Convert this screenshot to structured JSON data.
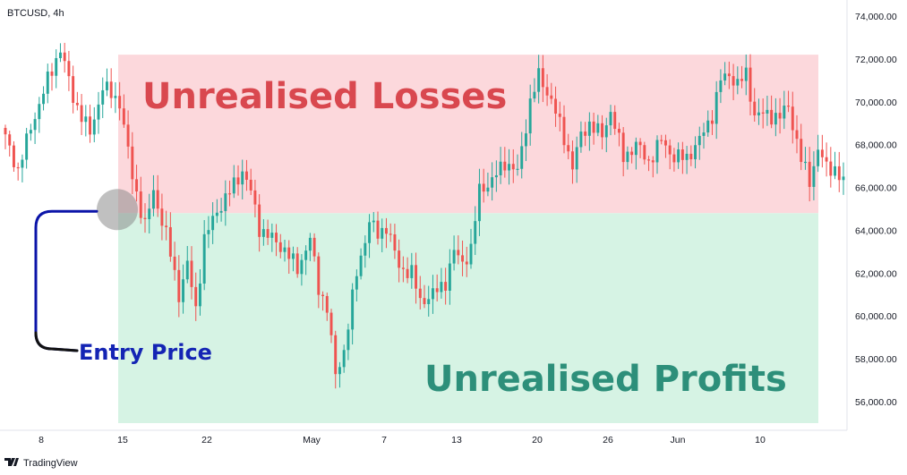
{
  "symbol_label": "BTCUSD, 4h",
  "watermark": "TradingView",
  "colors": {
    "up": "#26a69a",
    "down": "#ef5350",
    "loss_zone": "#fcd8dc",
    "profit_zone": "#d6f3e4",
    "entry_marker": "#8c8c8c",
    "bracket": "#0b14a8"
  },
  "annotations": {
    "losses": "Unrealised Losses",
    "profits": "Unrealised Profits",
    "entry": "Entry Price"
  },
  "chart_data": {
    "type": "candlestick",
    "y_axis": {
      "min": 54500,
      "max": 75000,
      "ticks": [
        "74,000.00",
        "72,000.00",
        "70,000.00",
        "68,000.00",
        "66,000.00",
        "64,000.00",
        "62,000.00",
        "60,000.00",
        "58,000.00",
        "56,000.00"
      ],
      "tick_values": [
        74000,
        72000,
        70000,
        68000,
        66000,
        64000,
        62000,
        60000,
        58000,
        56000
      ]
    },
    "x_axis": {
      "ticks": [
        "8",
        "15",
        "22",
        "May",
        "7",
        "13",
        "20",
        "26",
        "Jun",
        "10"
      ]
    },
    "entry_price": 64800,
    "loss_zone": {
      "from": 64800,
      "to": 72200
    },
    "profit_zone": {
      "from": 55000,
      "to": 64800
    },
    "price_anchors": [
      [
        0,
        68300
      ],
      [
        3,
        66800
      ],
      [
        6,
        68800
      ],
      [
        10,
        71000
      ],
      [
        13,
        72500
      ],
      [
        16,
        70200
      ],
      [
        20,
        68500
      ],
      [
        23,
        70700
      ],
      [
        27,
        70000
      ],
      [
        30,
        66500
      ],
      [
        33,
        64200
      ],
      [
        35,
        65800
      ],
      [
        38,
        63800
      ],
      [
        41,
        61000
      ],
      [
        43,
        62400
      ],
      [
        45,
        60300
      ],
      [
        47,
        63600
      ],
      [
        50,
        64900
      ],
      [
        53,
        65800
      ],
      [
        56,
        66800
      ],
      [
        58,
        65800
      ],
      [
        60,
        64100
      ],
      [
        63,
        63600
      ],
      [
        66,
        63100
      ],
      [
        69,
        62200
      ],
      [
        72,
        63600
      ],
      [
        74,
        61300
      ],
      [
        76,
        60400
      ],
      [
        78,
        57200
      ],
      [
        80,
        58400
      ],
      [
        83,
        62000
      ],
      [
        86,
        64400
      ],
      [
        88,
        63800
      ],
      [
        90,
        64200
      ],
      [
        93,
        62300
      ],
      [
        96,
        62000
      ],
      [
        98,
        60700
      ],
      [
        101,
        61000
      ],
      [
        104,
        61600
      ],
      [
        106,
        63000
      ],
      [
        108,
        62500
      ],
      [
        110,
        63100
      ],
      [
        112,
        65900
      ],
      [
        115,
        66300
      ],
      [
        118,
        67200
      ],
      [
        121,
        66700
      ],
      [
        124,
        70000
      ],
      [
        126,
        71200
      ],
      [
        129,
        70100
      ],
      [
        132,
        68300
      ],
      [
        134,
        67000
      ],
      [
        136,
        68400
      ],
      [
        138,
        69000
      ],
      [
        141,
        68400
      ],
      [
        143,
        69600
      ],
      [
        146,
        67400
      ],
      [
        149,
        68000
      ],
      [
        152,
        67200
      ],
      [
        155,
        68200
      ],
      [
        158,
        67400
      ],
      [
        161,
        67400
      ],
      [
        164,
        68200
      ],
      [
        167,
        69400
      ],
      [
        169,
        71000
      ],
      [
        171,
        71300
      ],
      [
        173,
        70800
      ],
      [
        175,
        71300
      ],
      [
        177,
        69400
      ],
      [
        180,
        69400
      ],
      [
        183,
        69300
      ],
      [
        185,
        69800
      ],
      [
        188,
        67300
      ],
      [
        190,
        66300
      ],
      [
        192,
        67800
      ],
      [
        194,
        66900
      ],
      [
        196,
        66900
      ],
      [
        198,
        66200
      ]
    ]
  }
}
